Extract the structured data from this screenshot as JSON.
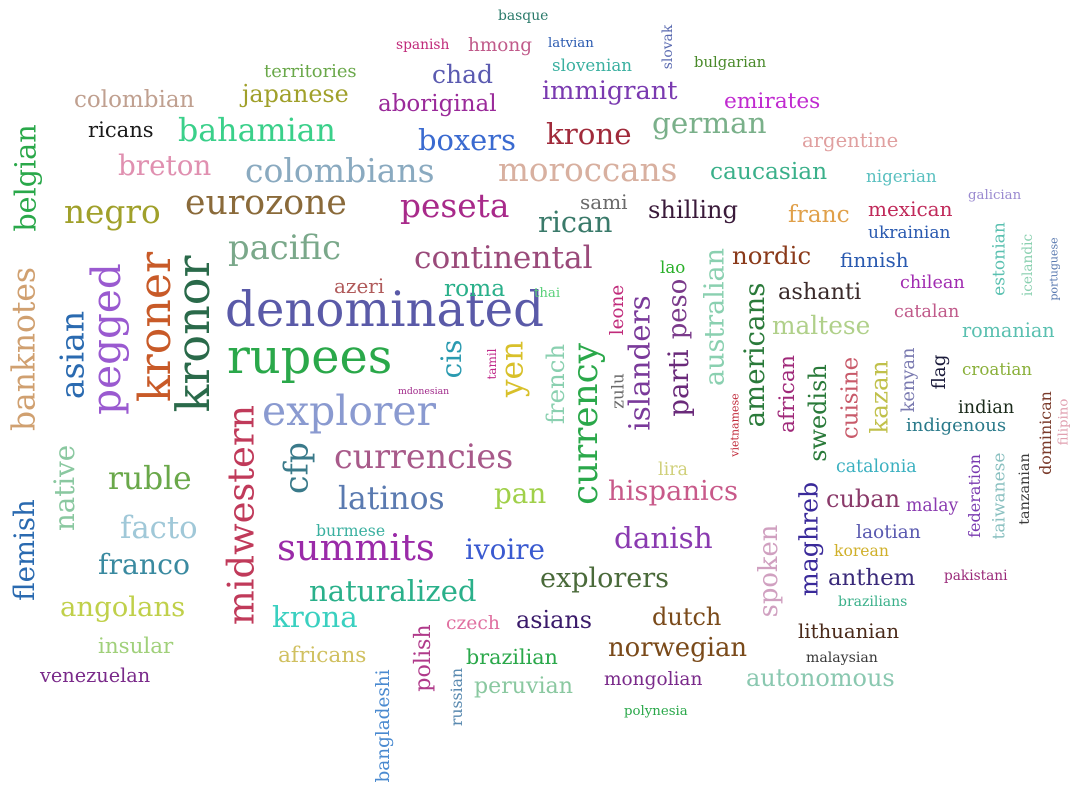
{
  "words": [
    {
      "t": "denominated",
      "c": "#5a5aa8"
    },
    {
      "t": "rupees",
      "c": "#2aa84a"
    },
    {
      "t": "explorer",
      "c": "#8a9ad0"
    },
    {
      "t": "pacific",
      "c": "#7aa88a"
    },
    {
      "t": "kroner",
      "c": "#c85a28"
    },
    {
      "t": "kronor",
      "c": "#2a6a4a"
    },
    {
      "t": "pegged",
      "c": "#9a5ad0"
    },
    {
      "t": "asian",
      "c": "#2a6ab0"
    },
    {
      "t": "midwestern",
      "c": "#c03a5a"
    },
    {
      "t": "currencies",
      "c": "#a85a8a"
    },
    {
      "t": "continental",
      "c": "#9a4a7a"
    },
    {
      "t": "latinos",
      "c": "#5a7ab0"
    },
    {
      "t": "cfp",
      "c": "#3a7a8a"
    },
    {
      "t": "currency",
      "c": "#2aa84a"
    },
    {
      "t": "eurozone",
      "c": "#8a6a3a"
    },
    {
      "t": "peseta",
      "c": "#a82a8a"
    },
    {
      "t": "colombians",
      "c": "#8aaac0"
    },
    {
      "t": "moroccans",
      "c": "#d8b0a0"
    },
    {
      "t": "summits",
      "c": "#9a2aa8"
    },
    {
      "t": "naturalized",
      "c": "#2ab08a"
    },
    {
      "t": "ivoire",
      "c": "#3a5ad0"
    },
    {
      "t": "facto",
      "c": "#a0c8d8"
    },
    {
      "t": "ruble",
      "c": "#6aa84a"
    },
    {
      "t": "banknotes",
      "c": "#d0a070"
    },
    {
      "t": "native",
      "c": "#8ac8a0"
    },
    {
      "t": "flemish",
      "c": "#2a6ab0"
    },
    {
      "t": "negro",
      "c": "#a0a02a"
    },
    {
      "t": "breton",
      "c": "#e090b0"
    },
    {
      "t": "bahamian",
      "c": "#3ad08a"
    },
    {
      "t": "boxers",
      "c": "#3a6ad0"
    },
    {
      "t": "krone",
      "c": "#a02a3a"
    },
    {
      "t": "shilling",
      "c": "#3a1a3a"
    },
    {
      "t": "rican",
      "c": "#3a7a6a"
    },
    {
      "t": "yen",
      "c": "#d8c02a"
    },
    {
      "t": "cis",
      "c": "#2a9ab0"
    },
    {
      "t": "islanders",
      "c": "#7a3a9a"
    },
    {
      "t": "parti",
      "c": "#6a2a7a"
    },
    {
      "t": "peso",
      "c": "#7a3a8a"
    },
    {
      "t": "australian",
      "c": "#8ad0b0"
    },
    {
      "t": "americans",
      "c": "#2a7a3a"
    },
    {
      "t": "hispanics",
      "c": "#c85a8a"
    },
    {
      "t": "danish",
      "c": "#8a3ab0"
    },
    {
      "t": "explorers",
      "c": "#4a6a3a"
    },
    {
      "t": "krona",
      "c": "#3ad0c0"
    },
    {
      "t": "franco",
      "c": "#3a8aa0"
    },
    {
      "t": "angolans",
      "c": "#c0d04a"
    },
    {
      "t": "belgian",
      "c": "#2aa84a"
    },
    {
      "t": "german",
      "c": "#7ab08a"
    },
    {
      "t": "caucasian",
      "c": "#3ab08a"
    },
    {
      "t": "aboriginal",
      "c": "#9a2a9a"
    },
    {
      "t": "immigrant",
      "c": "#7a3ab0"
    },
    {
      "t": "colombian",
      "c": "#c0a090"
    },
    {
      "t": "japanese",
      "c": "#a0a02a"
    },
    {
      "t": "territories",
      "c": "#6aa84a"
    },
    {
      "t": "chad",
      "c": "#5a5ab0"
    },
    {
      "t": "ricans",
      "c": "#1a1a1a"
    },
    {
      "t": "emirates",
      "c": "#c02ad0"
    },
    {
      "t": "argentine",
      "c": "#e0a0a0"
    },
    {
      "t": "nigerian",
      "c": "#5ac0c0"
    },
    {
      "t": "franc",
      "c": "#e0a04a"
    },
    {
      "t": "mexican",
      "c": "#c02a5a"
    },
    {
      "t": "nordic",
      "c": "#8a3a1a"
    },
    {
      "t": "finnish",
      "c": "#2a5ab0"
    },
    {
      "t": "ashanti",
      "c": "#3a2a2a"
    },
    {
      "t": "chilean",
      "c": "#a02ab0"
    },
    {
      "t": "maltese",
      "c": "#b0d08a"
    },
    {
      "t": "catalan",
      "c": "#c05a8a"
    },
    {
      "t": "romanian",
      "c": "#5ac0b0"
    },
    {
      "t": "african",
      "c": "#a02a7a"
    },
    {
      "t": "swedish",
      "c": "#2a7a3a"
    },
    {
      "t": "cuisine",
      "c": "#c85a6a"
    },
    {
      "t": "kazan",
      "c": "#c0c04a"
    },
    {
      "t": "kenyan",
      "c": "#7a7ab0"
    },
    {
      "t": "flag",
      "c": "#1a1a3a"
    },
    {
      "t": "croatian",
      "c": "#8ab03a"
    },
    {
      "t": "indian",
      "c": "#1a2a1a"
    },
    {
      "t": "indigenous",
      "c": "#2a7a8a"
    },
    {
      "t": "catalonia",
      "c": "#3ab0c0"
    },
    {
      "t": "cuban",
      "c": "#8a3a6a"
    },
    {
      "t": "malay",
      "c": "#8a3ab0"
    },
    {
      "t": "laotian",
      "c": "#5a5ab0"
    },
    {
      "t": "korean",
      "c": "#d0b02a"
    },
    {
      "t": "maghreb",
      "c": "#3a2a9a"
    },
    {
      "t": "spoken",
      "c": "#d0a0c0"
    },
    {
      "t": "anthem",
      "c": "#3a2a7a"
    },
    {
      "t": "brazilians",
      "c": "#3ab08a"
    },
    {
      "t": "lithuanian",
      "c": "#4a2a1a"
    },
    {
      "t": "malaysian",
      "c": "#3a3a3a"
    },
    {
      "t": "autonomous",
      "c": "#8ac8b0"
    },
    {
      "t": "norwegian",
      "c": "#7a4a1a"
    },
    {
      "t": "dutch",
      "c": "#7a4a1a"
    },
    {
      "t": "asians",
      "c": "#3a1a6a"
    },
    {
      "t": "mongolian",
      "c": "#7a2a8a"
    },
    {
      "t": "polynesia",
      "c": "#2aa84a"
    },
    {
      "t": "brazilian",
      "c": "#2aa84a"
    },
    {
      "t": "peruvian",
      "c": "#8ac8a0"
    },
    {
      "t": "czech",
      "c": "#e070a0"
    },
    {
      "t": "polish",
      "c": "#b03a8a"
    },
    {
      "t": "russian",
      "c": "#5a8ab0"
    },
    {
      "t": "bangladeshi",
      "c": "#4a8ad0"
    },
    {
      "t": "africans",
      "c": "#d0c060"
    },
    {
      "t": "insular",
      "c": "#a0d07a"
    },
    {
      "t": "venezuelan",
      "c": "#7a2a8a"
    },
    {
      "t": "burmese",
      "c": "#3ab0a0"
    },
    {
      "t": "pan",
      "c": "#a0d04a"
    },
    {
      "t": "lira",
      "c": "#d0d07a"
    },
    {
      "t": "french",
      "c": "#8ad0b0"
    },
    {
      "t": "zulu",
      "c": "#6a6a6a"
    },
    {
      "t": "tamil",
      "c": "#c02a8a"
    },
    {
      "t": "leone",
      "c": "#c02a7a"
    },
    {
      "t": "vietnamese",
      "c": "#c02a3a"
    },
    {
      "t": "mdonesian",
      "c": "#a02a8a"
    },
    {
      "t": "azeri",
      "c": "#b05a5a"
    },
    {
      "t": "roma",
      "c": "#2ab08a"
    },
    {
      "t": "thai",
      "c": "#5ad07a"
    },
    {
      "t": "lao",
      "c": "#2ab02a"
    },
    {
      "t": "sami",
      "c": "#6a6a6a"
    },
    {
      "t": "ukrainian",
      "c": "#2a5ab0"
    },
    {
      "t": "galician",
      "c": "#9a8ad0"
    },
    {
      "t": "estonian",
      "c": "#5ac0b0"
    },
    {
      "t": "icelandic",
      "c": "#8ad0b0"
    },
    {
      "t": "portuguese",
      "c": "#5a7ab0"
    },
    {
      "t": "federation",
      "c": "#7a3ab0"
    },
    {
      "t": "taiwanese",
      "c": "#8ac0c0"
    },
    {
      "t": "tanzanian",
      "c": "#3a3a3a"
    },
    {
      "t": "dominican",
      "c": "#7a3a2a"
    },
    {
      "t": "filipino",
      "c": "#e0a0b0"
    },
    {
      "t": "pakistani",
      "c": "#9a2a7a"
    },
    {
      "t": "basque",
      "c": "#2a7a6a"
    },
    {
      "t": "spanish",
      "c": "#c02a7a"
    },
    {
      "t": "hmong",
      "c": "#c05a8a"
    },
    {
      "t": "latvian",
      "c": "#2a5ab0"
    },
    {
      "t": "slovak",
      "c": "#5a6ab0"
    },
    {
      "t": "slovenian",
      "c": "#3ab0a0"
    },
    {
      "t": "bulgarian",
      "c": "#4a8a2a"
    }
  ]
}
